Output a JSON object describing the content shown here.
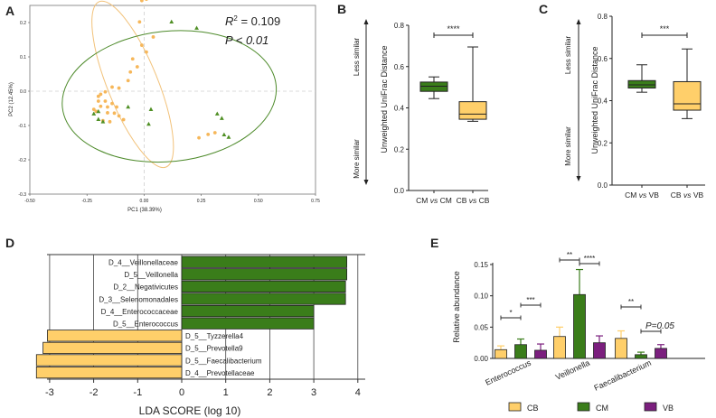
{
  "colors": {
    "cb": "#FFCF6A",
    "cm": "#3A7D1A",
    "vb": "#7B1F7E",
    "ellipse_cb": "#F2C27A",
    "ellipse_cm": "#4D8A2A",
    "point_cb": "#F6B75A",
    "point_cm": "#4F8F24"
  },
  "chart_data": [
    {
      "panel": "A",
      "type": "scatter",
      "xlabel": "PC1  (38.39%)",
      "ylabel": "PC2  (12.45%)",
      "xlim": [
        -0.5,
        0.75
      ],
      "ylim": [
        -0.3,
        0.25
      ],
      "xticks": [
        "-0.50",
        "-0.25",
        "0.00",
        "0.25",
        "0.50",
        "0.75"
      ],
      "yticks": [
        "-0.3",
        "-0.2",
        "-0.1",
        "0.0",
        "0.1",
        "0.2"
      ],
      "annotation_r2_symbol": "R",
      "annotation_r2_exp": "2",
      "annotation_r2_value": " = 0.109",
      "annotation_p": "P < 0.01",
      "series": [
        {
          "name": "CB",
          "shape": "circle",
          "x": [
            -0.01,
            0.01,
            -0.02,
            0.04,
            -0.01,
            0.01,
            -0.05,
            -0.03,
            -0.06,
            -0.07,
            -0.11,
            -0.14,
            -0.17,
            -0.19,
            -0.2,
            -0.2,
            -0.17,
            -0.14,
            -0.12,
            -0.16,
            -0.19,
            -0.22,
            -0.21,
            -0.16,
            -0.13,
            -0.11,
            -0.09,
            -0.18,
            -0.15,
            0.28,
            0.31,
            0.24
          ],
          "y": [
            0.264,
            0.268,
            0.202,
            0.158,
            0.134,
            0.114,
            0.094,
            0.071,
            0.056,
            0.031,
            0.009,
            0.012,
            -0.002,
            -0.009,
            -0.015,
            -0.029,
            -0.029,
            -0.036,
            -0.046,
            -0.046,
            -0.044,
            -0.053,
            -0.059,
            -0.063,
            -0.064,
            -0.072,
            -0.083,
            -0.086,
            -0.089,
            -0.126,
            -0.121,
            -0.136
          ]
        },
        {
          "name": "CM",
          "shape": "triangle",
          "x": [
            0.12,
            0.23,
            -0.2,
            -0.22,
            -0.2,
            -0.18,
            -0.07,
            0.03,
            0.02,
            0.32,
            0.34,
            0.35,
            0.37
          ],
          "y": [
            0.202,
            0.184,
            -0.059,
            -0.066,
            -0.082,
            -0.089,
            -0.046,
            -0.053,
            -0.096,
            -0.066,
            -0.079,
            -0.127,
            -0.134
          ]
        }
      ],
      "ellipses": [
        {
          "name": "CB",
          "center": [
            -0.05,
            0.02
          ],
          "semi_axes": [
            0.11,
            0.26
          ],
          "rotation_deg": -22
        },
        {
          "name": "CM",
          "center": [
            0.11,
            -0.015
          ],
          "semi_axes": [
            0.47,
            0.19
          ],
          "rotation_deg": -6
        }
      ]
    },
    {
      "panel": "B",
      "type": "box",
      "ylabel": "Unweighted UniFrac Distance",
      "ylim": [
        0.0,
        0.8
      ],
      "yticks": [
        "0.0",
        "0.2",
        "0.4",
        "0.6",
        "0.8"
      ],
      "categories": [
        "CM vs CM",
        "CB vs CB"
      ],
      "cat_prefix": [
        "CM",
        "CB"
      ],
      "cat_vs": [
        "vs",
        "vs"
      ],
      "cat_suffix": [
        "CM",
        "CB"
      ],
      "boxes": [
        {
          "min": 0.445,
          "q1": 0.48,
          "median": 0.505,
          "q3": 0.525,
          "max": 0.55,
          "color": "cm"
        },
        {
          "min": 0.335,
          "q1": 0.345,
          "median": 0.37,
          "q3": 0.43,
          "max": 0.695,
          "color": "cb"
        }
      ],
      "significance": "****",
      "left_top_label": "Less similar",
      "left_bottom_label": "More similar"
    },
    {
      "panel": "C",
      "type": "box",
      "ylabel": "Unweighted UniFrac Distance",
      "ylim": [
        0.0,
        0.8
      ],
      "yticks": [
        "0.0",
        "0.2",
        "0.4",
        "0.6",
        "0.8"
      ],
      "categories": [
        "CM vs VB",
        "CB vs VB"
      ],
      "cat_prefix": [
        "CM",
        "CB"
      ],
      "cat_vs": [
        "vs",
        "vs"
      ],
      "cat_suffix": [
        "VB",
        "VB"
      ],
      "boxes": [
        {
          "min": 0.44,
          "q1": 0.46,
          "median": 0.475,
          "q3": 0.495,
          "max": 0.57,
          "color": "cm"
        },
        {
          "min": 0.315,
          "q1": 0.355,
          "median": 0.385,
          "q3": 0.49,
          "max": 0.645,
          "color": "cb"
        }
      ],
      "significance": "***",
      "left_top_label": "Less similar",
      "left_bottom_label": "More similar"
    },
    {
      "panel": "D",
      "type": "bar",
      "orientation": "horizontal",
      "xlabel": "LDA SCORE (log 10)",
      "xlim": [
        -3.4,
        4.2
      ],
      "xticks": [
        "-3",
        "-2",
        "-1",
        "0",
        "1",
        "2",
        "3",
        "4"
      ],
      "categories": [
        "D_4__Veillonellaceae",
        "D_5__Veillonella",
        "D_2__Negativicutes",
        "D_3__Selenomonadales",
        "D_4__Enterococcaceae",
        "D_5__Enterococcus",
        "D_5__Tyzzerella4",
        "D_5__Prevotella9",
        "D_5__Faecalibacterium",
        "D_4__Prevotellaceae"
      ],
      "values": [
        3.75,
        3.75,
        3.72,
        3.72,
        3.0,
        3.0,
        -3.05,
        -3.15,
        -3.3,
        -3.3
      ],
      "group": [
        "cm",
        "cm",
        "cm",
        "cm",
        "cm",
        "cm",
        "cb",
        "cb",
        "cb",
        "cb"
      ]
    },
    {
      "panel": "E",
      "type": "bar",
      "ylabel": "Relative abundance",
      "ylim": [
        0,
        0.15
      ],
      "yticks": [
        "0.00",
        "0.05",
        "0.10",
        "0.15"
      ],
      "categories": [
        "Enterococcus",
        "Veillonella",
        "Faecalibacterium"
      ],
      "series": [
        {
          "name": "CB",
          "color": "cb",
          "values": [
            0.014,
            0.035,
            0.032
          ],
          "errors": [
            0.006,
            0.015,
            0.012
          ]
        },
        {
          "name": "CM",
          "color": "cm",
          "values": [
            0.022,
            0.102,
            0.006
          ],
          "errors": [
            0.009,
            0.04,
            0.004
          ]
        },
        {
          "name": "VB",
          "color": "vb",
          "values": [
            0.013,
            0.025,
            0.016
          ],
          "errors": [
            0.01,
            0.011,
            0.006
          ]
        }
      ],
      "comparisons": [
        {
          "category": 0,
          "from": 0,
          "to": 1,
          "label": "*"
        },
        {
          "category": 0,
          "from": 1,
          "to": 2,
          "label": "***"
        },
        {
          "category": 1,
          "from": 0,
          "to": 1,
          "label": "**"
        },
        {
          "category": 1,
          "from": 1,
          "to": 2,
          "label": "****"
        },
        {
          "category": 2,
          "from": 0,
          "to": 1,
          "label": "**"
        },
        {
          "category": 2,
          "from": 1,
          "to": 2,
          "label": "P=0.05"
        }
      ]
    }
  ],
  "panel_letters": [
    "A",
    "B",
    "C",
    "D",
    "E"
  ]
}
